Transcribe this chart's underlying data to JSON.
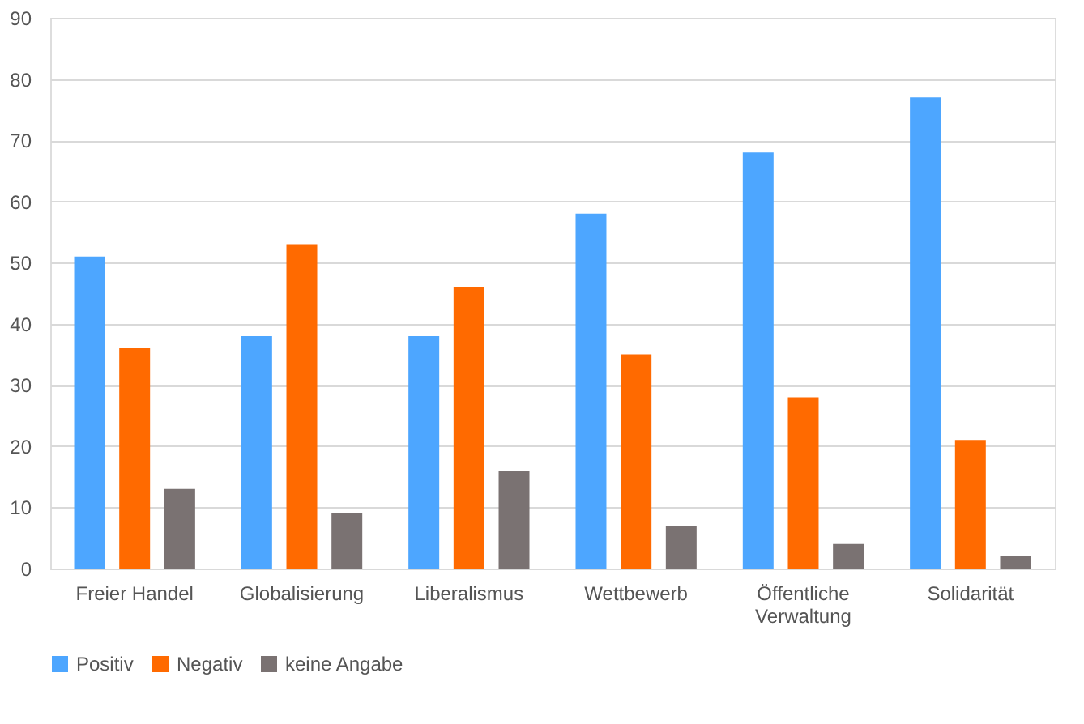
{
  "chart_data": {
    "type": "bar",
    "categories": [
      "Freier Handel",
      "Globalisierung",
      "Liberalismus",
      "Wettbewerb",
      "Öffentliche Verwaltung",
      "Solidarität"
    ],
    "series": [
      {
        "name": "Positiv",
        "color": "#4da6ff",
        "values": [
          51,
          38,
          38,
          58,
          68,
          77
        ]
      },
      {
        "name": "Negativ",
        "color": "#ff6a00",
        "values": [
          36,
          53,
          46,
          35,
          28,
          21
        ]
      },
      {
        "name": "keine Angabe",
        "color": "#7a7272",
        "values": [
          13,
          9,
          16,
          7,
          4,
          2
        ]
      }
    ],
    "ylim": [
      0,
      90
    ],
    "yticks": [
      0,
      10,
      20,
      30,
      40,
      50,
      60,
      70,
      80,
      90
    ],
    "grid": "y",
    "legend": "bottom"
  }
}
